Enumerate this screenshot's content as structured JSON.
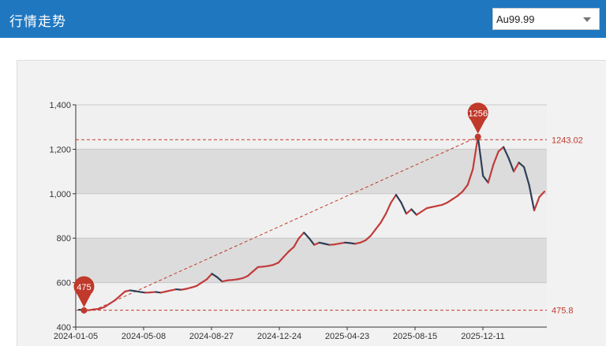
{
  "header": {
    "title": "行情走势"
  },
  "selector": {
    "value": "Au99.99"
  },
  "chart_data": {
    "type": "line",
    "ylim": [
      400,
      1400
    ],
    "y_ticks": [
      400,
      600,
      800,
      1000,
      1200,
      1400
    ],
    "y_tick_labels": [
      "400",
      "600",
      "800",
      "1,000",
      "1,200",
      "1,400"
    ],
    "x_tick_labels": [
      "2024-01-05",
      "2024-05-08",
      "2024-08-27",
      "2024-12-24",
      "2025-04-23",
      "2025-08-15",
      "2025-12-11"
    ],
    "grid_bands": true,
    "series": [
      {
        "values": [
          478,
          476,
          476,
          480,
          482,
          490,
          505,
          520,
          540,
          560,
          565,
          562,
          558,
          555,
          556,
          558,
          555,
          560,
          565,
          570,
          568,
          572,
          578,
          585,
          600,
          615,
          640,
          625,
          605,
          610,
          612,
          615,
          620,
          630,
          650,
          670,
          672,
          675,
          680,
          690,
          715,
          740,
          760,
          800,
          825,
          800,
          770,
          780,
          775,
          770,
          772,
          776,
          780,
          778,
          775,
          780,
          790,
          810,
          840,
          870,
          910,
          960,
          995,
          960,
          910,
          930,
          905,
          920,
          935,
          940,
          945,
          950,
          960,
          975,
          990,
          1010,
          1040,
          1110,
          1256,
          1080,
          1050,
          1130,
          1190,
          1210,
          1160,
          1100,
          1140,
          1120,
          1040,
          925,
          985,
          1010
        ]
      }
    ],
    "annotations": {
      "max_value": 1256,
      "min_value": 475,
      "max_line": 1243.02,
      "min_line": 475.8
    }
  }
}
